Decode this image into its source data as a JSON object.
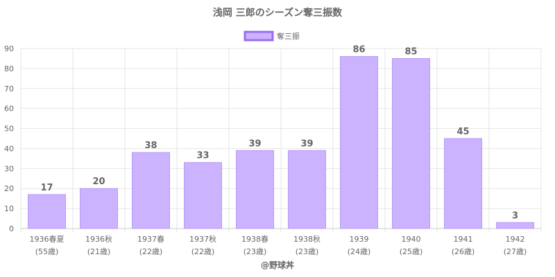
{
  "chart_data": {
    "type": "bar",
    "title": "浅岡 三郎のシーズン奪三振数",
    "legend": {
      "label": "奪三振",
      "position": "top"
    },
    "categories": [
      [
        "1936春夏",
        "(55歳)"
      ],
      [
        "1936秋",
        "(21歳)"
      ],
      [
        "1937春",
        "(22歳)"
      ],
      [
        "1937秋",
        "(22歳)"
      ],
      [
        "1938春",
        "(23歳)"
      ],
      [
        "1938秋",
        "(23歳)"
      ],
      [
        "1939",
        "(24歳)"
      ],
      [
        "1940",
        "(25歳)"
      ],
      [
        "1941",
        "(26歳)"
      ],
      [
        "1942",
        "(27歳)"
      ]
    ],
    "series": [
      {
        "name": "奪三振",
        "values": [
          17,
          20,
          38,
          33,
          39,
          39,
          86,
          85,
          45,
          3
        ]
      }
    ],
    "ylim": [
      0,
      90
    ],
    "yticks": [
      0,
      10,
      20,
      30,
      40,
      50,
      60,
      70,
      80,
      90
    ],
    "grid": true,
    "data_labels": true,
    "colors": {
      "bar_fill": "#cbb3ff",
      "bar_stroke": "#b89cf5",
      "legend_stroke": "#9b6cf0",
      "grid": "#e6e6e6",
      "text": "#666666"
    }
  },
  "credit": "@野球丼"
}
